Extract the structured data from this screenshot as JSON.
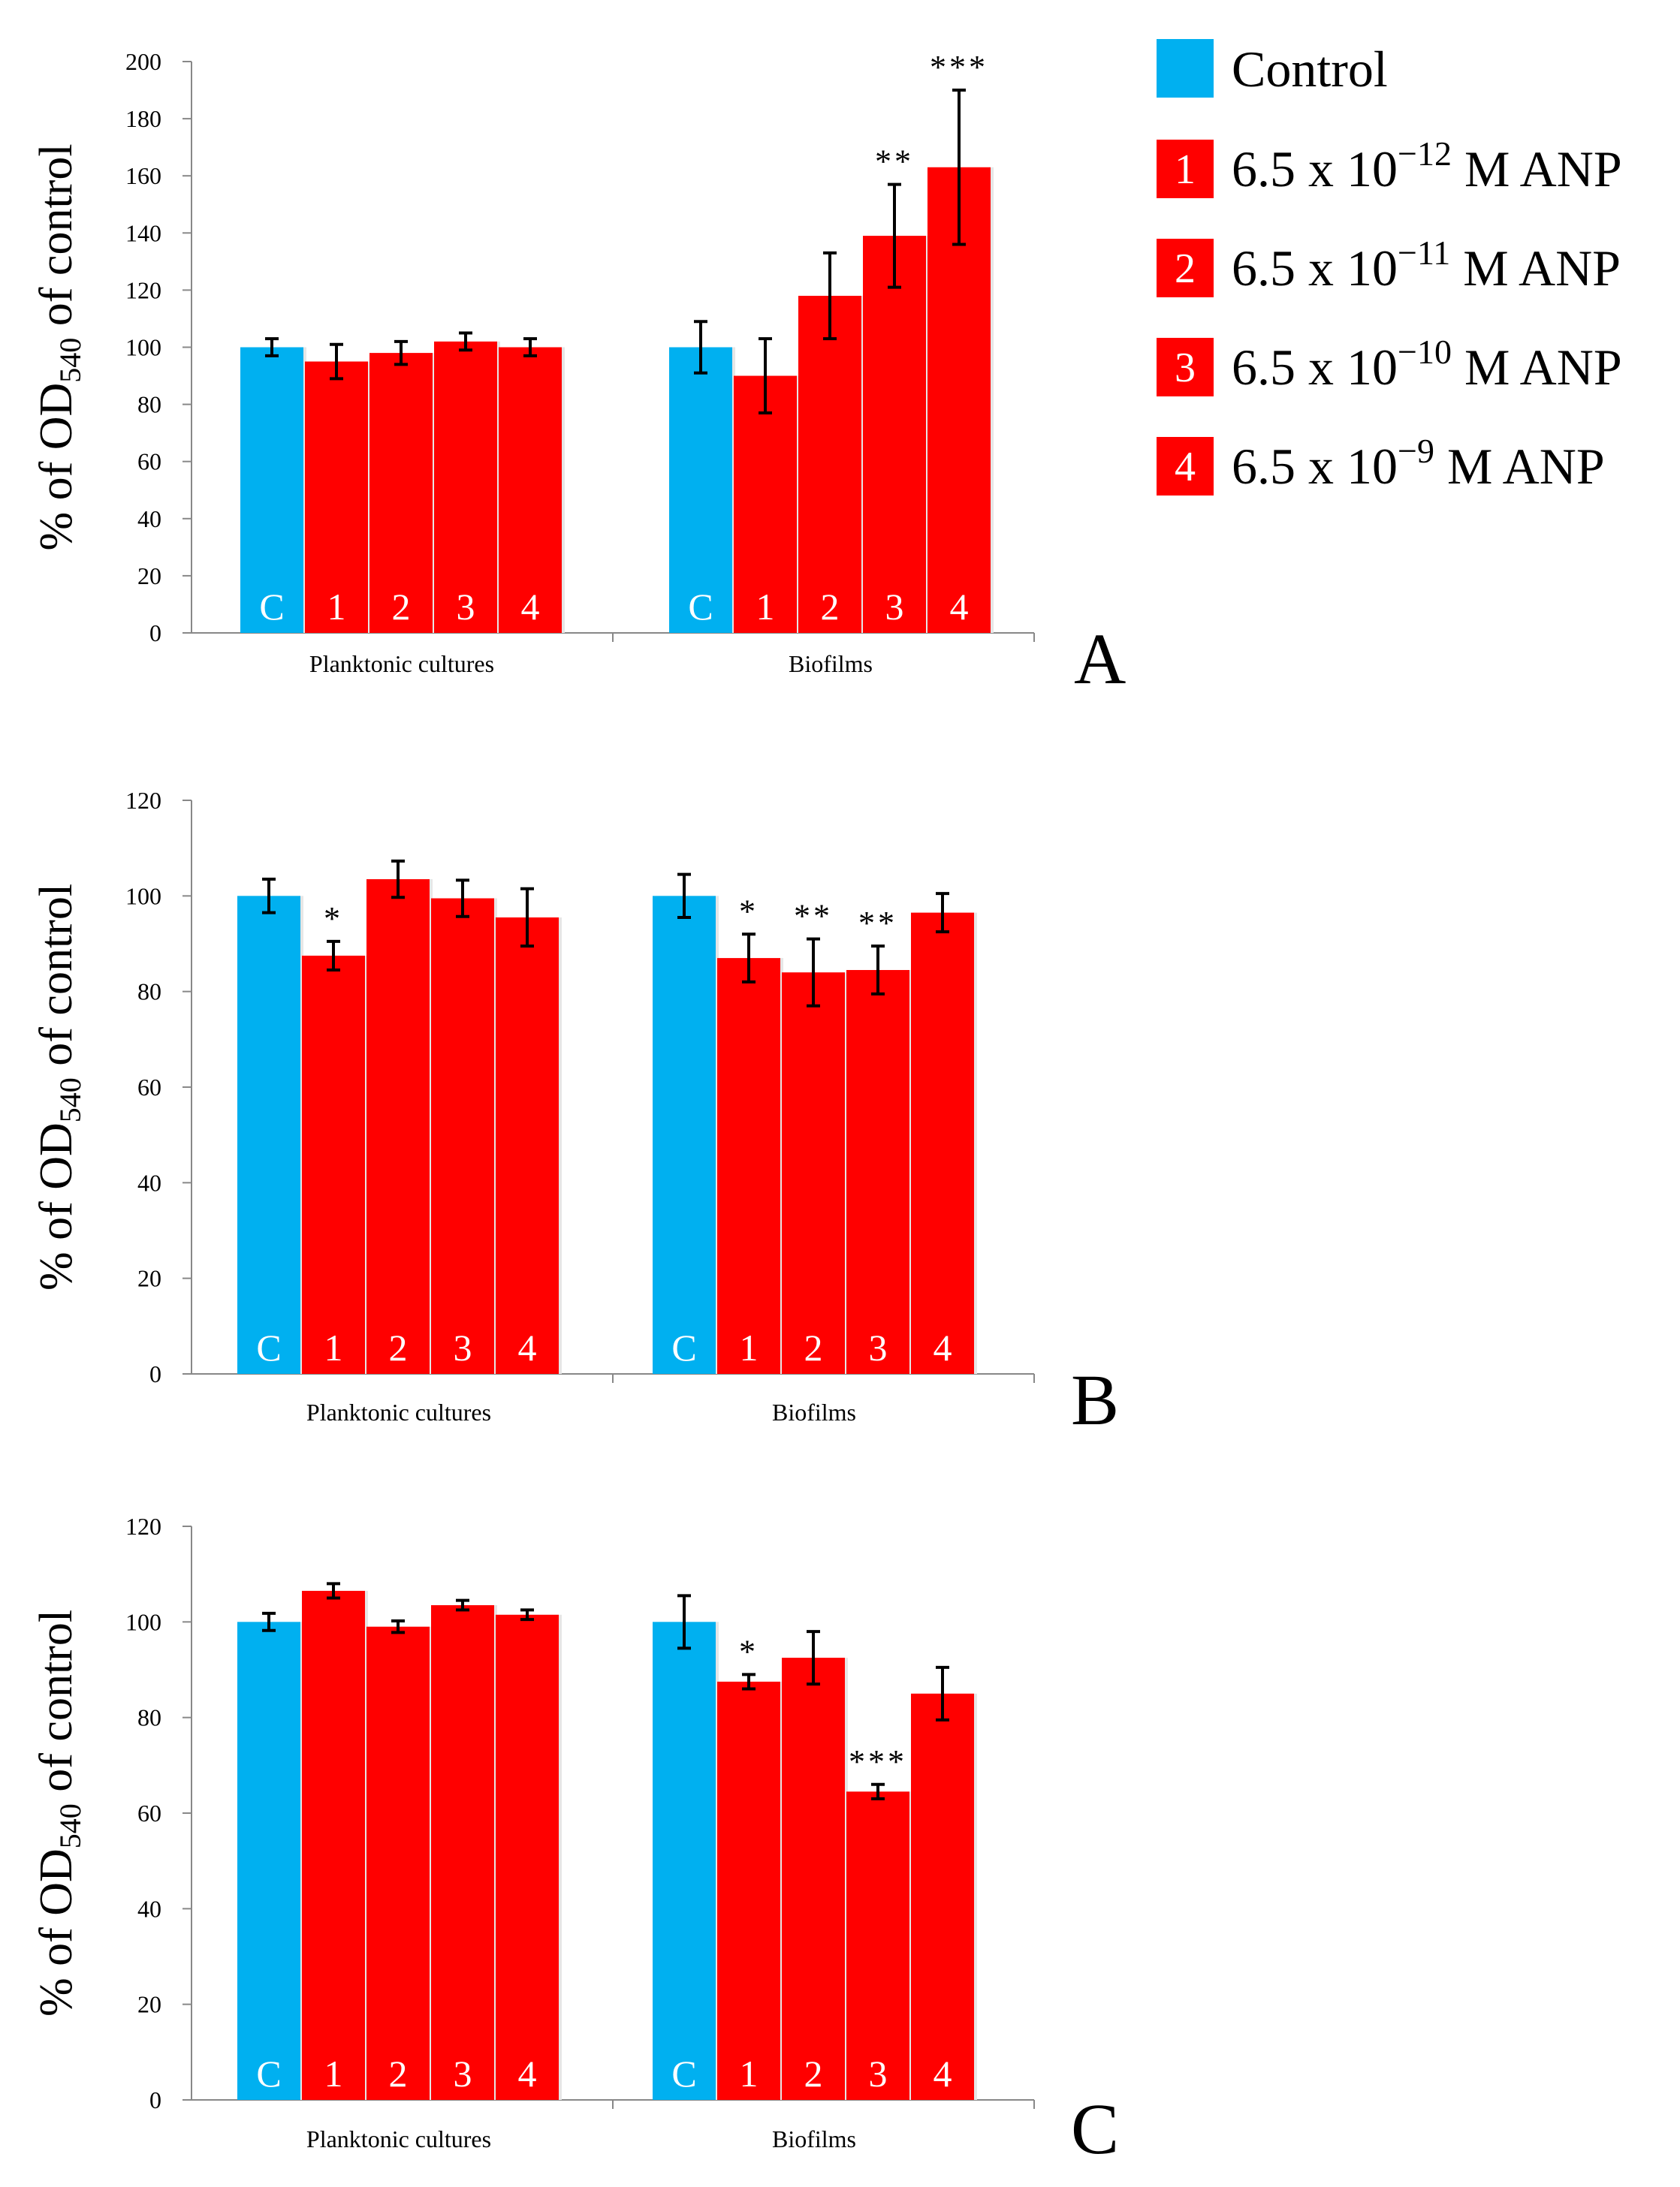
{
  "legend": {
    "control_label": "Control",
    "items": [
      {
        "num": "1",
        "label_base": "6.5 x 10",
        "exponent": "−12",
        "label_suffix": " M ANP"
      },
      {
        "num": "2",
        "label_base": "6.5 x 10",
        "exponent": "−11",
        "label_suffix": " M ANP"
      },
      {
        "num": "3",
        "label_base": "6.5 x 10",
        "exponent": "−10",
        "label_suffix": " M ANP"
      },
      {
        "num": "4",
        "label_base": "6.5 x 10",
        "exponent": "−9",
        "label_suffix": " M ANP"
      }
    ]
  },
  "colors": {
    "control": "#00b0f0",
    "treatment": "#ff0000"
  },
  "chart_data": [
    {
      "panel": "A",
      "type": "bar",
      "ylabel_prefix": "% of OD",
      "ylabel_sub": "540",
      "ylabel_suffix": " of control",
      "ylim": [
        0,
        200
      ],
      "yticks": [
        0,
        20,
        40,
        60,
        80,
        100,
        120,
        140,
        160,
        180,
        200
      ],
      "groups": [
        {
          "name": "Planktonic cultures",
          "bar_labels": [
            "C",
            "1",
            "2",
            "3",
            "4"
          ],
          "values": [
            100,
            95,
            98,
            102,
            100
          ],
          "errors": [
            3,
            6,
            4,
            3,
            3
          ],
          "significance": [
            "",
            "",
            "",
            "",
            ""
          ]
        },
        {
          "name": "Biofilms",
          "bar_labels": [
            "C",
            "1",
            "2",
            "3",
            "4"
          ],
          "values": [
            100,
            90,
            118,
            139,
            163
          ],
          "errors": [
            9,
            13,
            15,
            18,
            27
          ],
          "significance": [
            "",
            "",
            "",
            "**",
            "***"
          ]
        }
      ]
    },
    {
      "panel": "B",
      "type": "bar",
      "ylabel_prefix": "% of OD",
      "ylabel_sub": "540",
      "ylabel_suffix": " of control",
      "ylim": [
        0,
        120
      ],
      "yticks": [
        0,
        20,
        40,
        60,
        80,
        100,
        120
      ],
      "groups": [
        {
          "name": "Planktonic cultures",
          "bar_labels": [
            "C",
            "1",
            "2",
            "3",
            "4"
          ],
          "values": [
            100,
            87.5,
            103.5,
            99.5,
            95.5
          ],
          "errors": [
            3.5,
            3,
            3.8,
            3.8,
            6
          ],
          "significance": [
            "",
            "*",
            "",
            "",
            ""
          ]
        },
        {
          "name": "Biofilms",
          "bar_labels": [
            "C",
            "1",
            "2",
            "3",
            "4"
          ],
          "values": [
            100,
            87,
            84,
            84.5,
            96.5
          ],
          "errors": [
            4.5,
            5,
            7,
            5,
            4
          ],
          "significance": [
            "",
            "*",
            "**",
            "**",
            ""
          ]
        }
      ]
    },
    {
      "panel": "C",
      "type": "bar",
      "ylabel_prefix": "% of OD",
      "ylabel_sub": "540",
      "ylabel_suffix": " of control",
      "ylim": [
        0,
        120
      ],
      "yticks": [
        0,
        20,
        40,
        60,
        80,
        100,
        120
      ],
      "groups": [
        {
          "name": "Planktonic cultures",
          "bar_labels": [
            "C",
            "1",
            "2",
            "3",
            "4"
          ],
          "values": [
            100,
            106.5,
            99,
            103.5,
            101.5
          ],
          "errors": [
            1.8,
            1.5,
            1.2,
            1,
            1
          ],
          "significance": [
            "",
            "",
            "",
            "",
            ""
          ]
        },
        {
          "name": "Biofilms",
          "bar_labels": [
            "C",
            "1",
            "2",
            "3",
            "4"
          ],
          "values": [
            100,
            87.5,
            92.5,
            64.5,
            85
          ],
          "errors": [
            5.5,
            1.5,
            5.5,
            1.5,
            5.5
          ],
          "significance": [
            "",
            "*",
            "",
            "***",
            ""
          ]
        }
      ]
    }
  ]
}
